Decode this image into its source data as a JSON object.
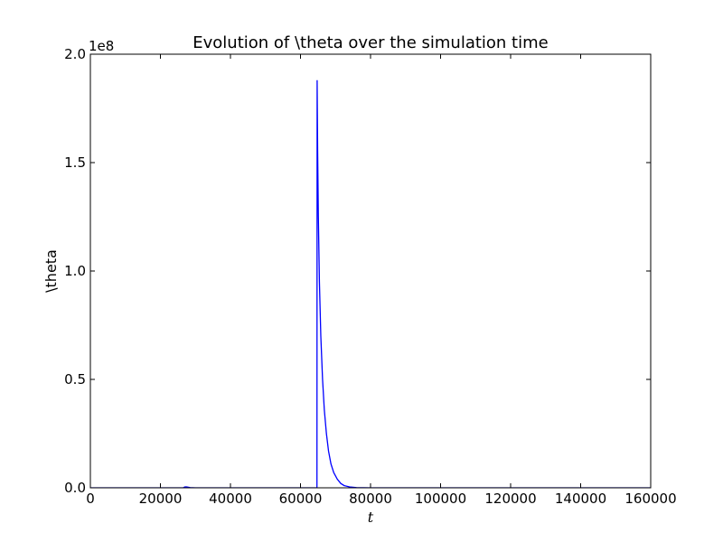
{
  "chart_data": {
    "type": "line",
    "title": "Evolution of \\theta over the simulation time",
    "xlabel": "t",
    "ylabel": "\\theta",
    "y_offset_label": "1e8",
    "xlim": [
      0,
      160000
    ],
    "ylim": [
      0,
      2.0
    ],
    "y_scale_factor": 100000000,
    "grid": false,
    "x_ticks": [
      0,
      20000,
      40000,
      60000,
      80000,
      100000,
      120000,
      140000,
      160000
    ],
    "x_tick_labels": [
      "0",
      "20000",
      "40000",
      "60000",
      "80000",
      "100000",
      "120000",
      "140000",
      "160000"
    ],
    "y_ticks": [
      0,
      0.5,
      1.0,
      1.5,
      2.0
    ],
    "y_tick_labels": [
      "0.0",
      "0.5",
      "1.0",
      "1.5",
      "2.0"
    ],
    "series": [
      {
        "color": "#0000ff",
        "x": [
          0,
          26500,
          27000,
          27500,
          28500,
          30000,
          64700,
          64750,
          64900,
          65100,
          65400,
          65800,
          66300,
          66800,
          67400,
          68000,
          68700,
          69500,
          70500,
          71500,
          72500,
          74000,
          76000,
          80000,
          100000,
          160000
        ],
        "y": [
          0,
          0,
          0.004,
          0.004,
          0.001,
          0,
          0,
          1.88,
          1.55,
          1.25,
          0.95,
          0.7,
          0.5,
          0.36,
          0.25,
          0.17,
          0.11,
          0.07,
          0.04,
          0.02,
          0.01,
          0.004,
          0.001,
          0,
          0,
          0
        ]
      }
    ]
  }
}
